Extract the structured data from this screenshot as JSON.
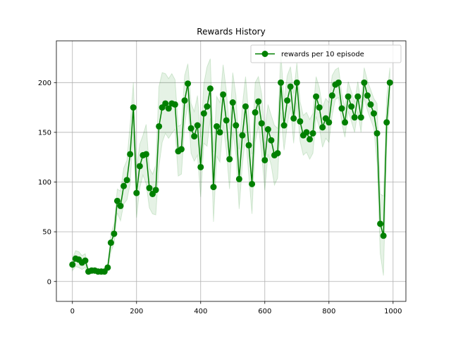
{
  "chart_data": {
    "type": "line",
    "title": "Rewards History",
    "xlabel": "",
    "ylabel": "",
    "xlim": [
      -50,
      1040
    ],
    "ylim": [
      -20,
      242
    ],
    "xticks": [
      0,
      200,
      400,
      600,
      800,
      1000
    ],
    "yticks": [
      0,
      50,
      100,
      150,
      200
    ],
    "grid": true,
    "legend": {
      "position": "top-right"
    },
    "colors": {
      "line": "#008000",
      "band": "#008000",
      "grid": "#b0b0b0"
    },
    "series": [
      {
        "name": "rewards per 10 episode",
        "x": [
          0,
          10,
          20,
          30,
          40,
          50,
          60,
          70,
          80,
          90,
          100,
          110,
          120,
          130,
          140,
          150,
          160,
          170,
          180,
          190,
          200,
          210,
          220,
          230,
          240,
          250,
          260,
          270,
          280,
          290,
          300,
          310,
          320,
          330,
          340,
          350,
          360,
          370,
          380,
          390,
          400,
          410,
          420,
          430,
          440,
          450,
          460,
          470,
          480,
          490,
          500,
          510,
          520,
          530,
          540,
          550,
          560,
          570,
          580,
          590,
          600,
          610,
          620,
          630,
          640,
          650,
          660,
          670,
          680,
          690,
          700,
          710,
          720,
          730,
          740,
          750,
          760,
          770,
          780,
          790,
          800,
          810,
          820,
          830,
          840,
          850,
          860,
          870,
          880,
          890,
          900,
          910,
          920,
          930,
          940,
          950,
          960,
          970,
          980,
          990
        ],
        "y": [
          17,
          23,
          22,
          19,
          21,
          10,
          11,
          11,
          10,
          10,
          10,
          14,
          39,
          48,
          81,
          76,
          96,
          102,
          128,
          175,
          89,
          116,
          127,
          128,
          94,
          88,
          92,
          156,
          175,
          179,
          174,
          179,
          178,
          131,
          133,
          182,
          199,
          154,
          146,
          157,
          115,
          169,
          176,
          194,
          95,
          156,
          150,
          188,
          162,
          123,
          180,
          157,
          103,
          147,
          176,
          137,
          98,
          170,
          181,
          159,
          122,
          153,
          142,
          127,
          129,
          200,
          157,
          182,
          196,
          164,
          200,
          161,
          147,
          150,
          143,
          149,
          186,
          175,
          155,
          164,
          160,
          187,
          198,
          200,
          174,
          160,
          186,
          176,
          165,
          186,
          165,
          200,
          187,
          178,
          169,
          149,
          58,
          46,
          160,
          200
        ],
        "band_half_width": [
          6,
          8,
          8,
          7,
          7,
          3,
          3,
          3,
          2,
          2,
          2,
          4,
          9,
          10,
          12,
          15,
          18,
          20,
          30,
          25,
          25,
          22,
          20,
          30,
          20,
          20,
          25,
          40,
          35,
          30,
          30,
          30,
          25,
          25,
          25,
          25,
          20,
          25,
          25,
          30,
          30,
          30,
          40,
          30,
          35,
          30,
          30,
          30,
          30,
          30,
          30,
          30,
          30,
          30,
          30,
          30,
          30,
          30,
          25,
          30,
          30,
          25,
          25,
          30,
          25,
          30,
          25,
          25,
          20,
          25,
          20,
          20,
          20,
          20,
          20,
          20,
          20,
          20,
          20,
          20,
          20,
          20,
          15,
          15,
          15,
          15,
          15,
          15,
          15,
          15,
          15,
          15,
          15,
          15,
          15,
          30,
          30,
          40,
          25,
          15
        ]
      }
    ]
  }
}
